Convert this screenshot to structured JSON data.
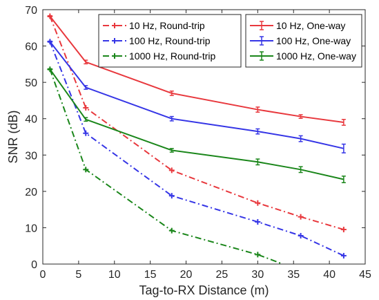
{
  "chart_data": {
    "type": "line",
    "xlabel": "Tag-to-RX Distance (m)",
    "ylabel": "SNR (dB)",
    "xlim": [
      0,
      45
    ],
    "ylim": [
      0,
      70
    ],
    "xticks": [
      0,
      5,
      10,
      15,
      20,
      25,
      30,
      35,
      40,
      45
    ],
    "yticks": [
      0,
      10,
      20,
      30,
      40,
      50,
      60,
      70
    ],
    "grid": false,
    "legends": [
      {
        "placement": "top-center",
        "series": [
          0,
          1,
          2
        ]
      },
      {
        "placement": "top-right",
        "series": [
          3,
          4,
          5
        ]
      }
    ],
    "series": [
      {
        "name": "10 Hz, Round-trip",
        "color": "#e8383d",
        "style": "dash-dot",
        "marker": "plus",
        "x": [
          1,
          6,
          18,
          30,
          36,
          42
        ],
        "y": [
          68.2,
          43.0,
          25.8,
          16.8,
          13.0,
          9.5
        ]
      },
      {
        "name": "100 Hz, Round-trip",
        "color": "#3535e6",
        "style": "dash-dot",
        "marker": "plus",
        "x": [
          1,
          6,
          18,
          30,
          36,
          42
        ],
        "y": [
          61.2,
          36.0,
          18.8,
          11.6,
          7.8,
          2.3
        ]
      },
      {
        "name": "1000 Hz, Round-trip",
        "color": "#1a861a",
        "style": "dash-dot",
        "marker": "plus",
        "x": [
          1,
          6,
          18,
          30,
          33.5
        ],
        "y": [
          53.6,
          26.0,
          9.2,
          2.6,
          0
        ]
      },
      {
        "name": "10 Hz, One-way",
        "color": "#e8383d",
        "style": "solid",
        "marker": "errorbar",
        "x": [
          1,
          6,
          18,
          30,
          36,
          42
        ],
        "y": [
          68.2,
          55.6,
          47.0,
          42.5,
          40.6,
          39.0
        ],
        "err": [
          0,
          0.5,
          0.6,
          0.7,
          0.5,
          0.8
        ]
      },
      {
        "name": "100 Hz, One-way",
        "color": "#3535e6",
        "style": "solid",
        "marker": "errorbar",
        "x": [
          1,
          6,
          18,
          30,
          36,
          42
        ],
        "y": [
          61.2,
          48.6,
          40.0,
          36.5,
          34.5,
          31.8
        ],
        "err": [
          0,
          0.5,
          0.6,
          0.7,
          0.8,
          1.2
        ]
      },
      {
        "name": "1000 Hz, One-way",
        "color": "#1a861a",
        "style": "solid",
        "marker": "errorbar",
        "x": [
          1,
          6,
          18,
          30,
          36,
          42
        ],
        "y": [
          53.6,
          39.8,
          31.3,
          28.1,
          26.0,
          23.3
        ],
        "err": [
          0,
          0.5,
          0.5,
          0.8,
          0.8,
          0.9
        ]
      }
    ]
  }
}
